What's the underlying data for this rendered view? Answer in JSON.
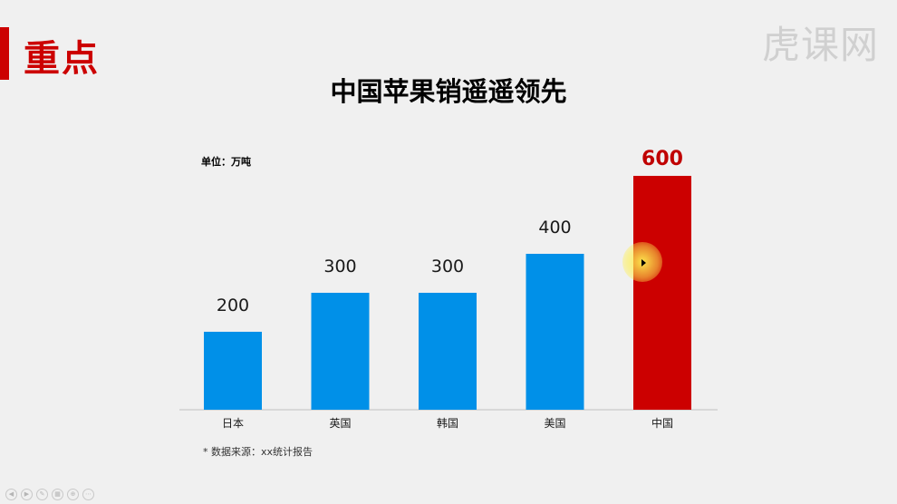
{
  "slide": {
    "section_label": "重点",
    "watermark": "虎课网",
    "unit_label": "单位：万吨",
    "source_note": "* 数据来源：xx统计报告"
  },
  "colors": {
    "bar": "#0090e8",
    "highlight_bar": "#cc0000",
    "highlight_label": "#c00000",
    "label": "#1a1a1a",
    "axis": "#bfbfbf",
    "accent": "#cc0000"
  },
  "toolbar": {
    "icons": [
      "prev-icon",
      "next-icon",
      "pen-icon",
      "slides-icon",
      "zoom-icon",
      "more-icon"
    ]
  },
  "chart_data": {
    "type": "bar",
    "title": "中国苹果销遥遥领先",
    "categories": [
      "日本",
      "英国",
      "韩国",
      "美国",
      "中国"
    ],
    "values": [
      200,
      300,
      300,
      400,
      600
    ],
    "data_labels": [
      "200",
      "300",
      "300",
      "400",
      "600"
    ],
    "highlight_index": 4,
    "ylim": [
      0,
      600
    ],
    "grid": false,
    "legend": "none"
  }
}
